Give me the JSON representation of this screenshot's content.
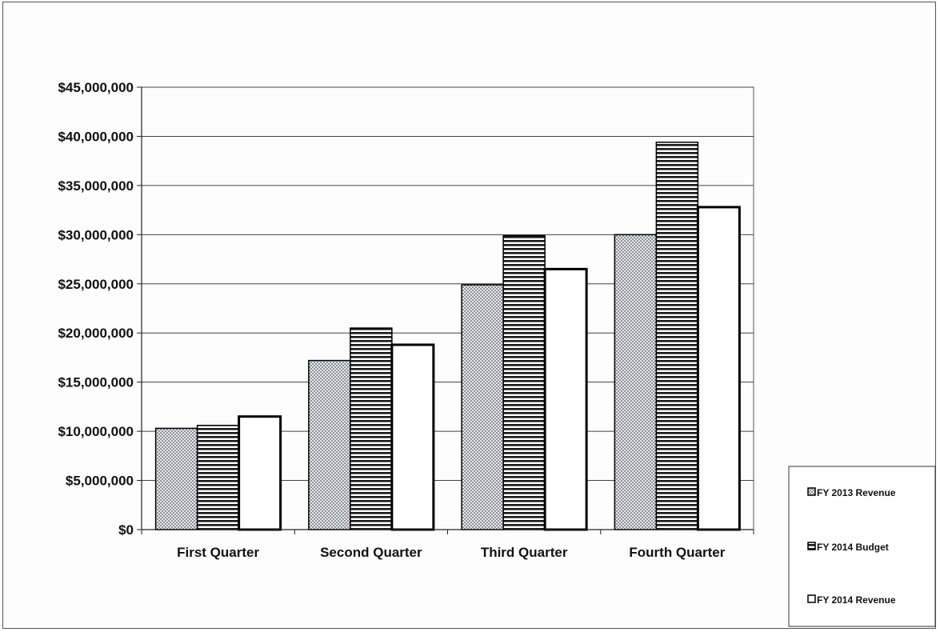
{
  "chart_data": {
    "type": "bar",
    "title": "",
    "xlabel": "",
    "ylabel": "",
    "categories": [
      "First Quarter",
      "Second Quarter",
      "Third Quarter",
      "Fourth Quarter"
    ],
    "series": [
      {
        "name": "FY 2013 Revenue",
        "values": [
          10300000,
          17200000,
          24900000,
          30000000
        ],
        "pattern": "dots"
      },
      {
        "name": "FY 2014 Budget",
        "values": [
          10600000,
          20500000,
          29900000,
          39400000
        ],
        "pattern": "horizontal-stripes"
      },
      {
        "name": "FY 2014 Revenue",
        "values": [
          11500000,
          18800000,
          26500000,
          32800000
        ],
        "pattern": "solid-white"
      }
    ],
    "ylim": [
      0,
      45000000
    ],
    "y_ticks": [
      0,
      5000000,
      10000000,
      15000000,
      20000000,
      25000000,
      30000000,
      35000000,
      40000000,
      45000000
    ],
    "y_tick_labels": [
      "$0",
      "$5,000,000",
      "$10,000,000",
      "$15,000,000",
      "$20,000,000",
      "$25,000,000",
      "$30,000,000",
      "$35,000,000",
      "$40,000,000",
      "$45,000,000"
    ],
    "grid": true,
    "legend_position": "bottom-right"
  },
  "colors": {
    "bar_outline": "#000000",
    "gridline": "#444444",
    "dot_fill_bg": "#e4e8ee",
    "dot_color": "#555555",
    "stripe_dark": "#1a1a1a",
    "stripe_light": "#ffffff",
    "white_bar": "#ffffff"
  }
}
